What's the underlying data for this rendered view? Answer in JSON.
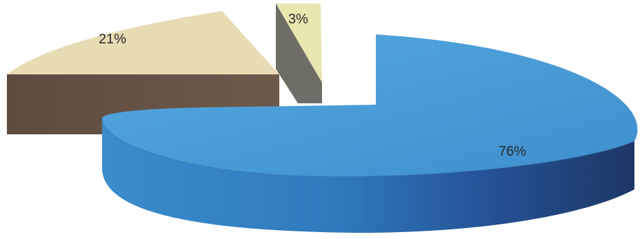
{
  "chart_data": {
    "type": "pie",
    "style": "3d-exploded",
    "title": "",
    "legend": "none",
    "slices": [
      {
        "value": 76,
        "label": "76%",
        "color": "#3f8cc9"
      },
      {
        "value": 21,
        "label": "21%",
        "color": "#e8dcb5"
      },
      {
        "value": 3,
        "label": "3%",
        "color": "#e9e6b0"
      }
    ]
  }
}
